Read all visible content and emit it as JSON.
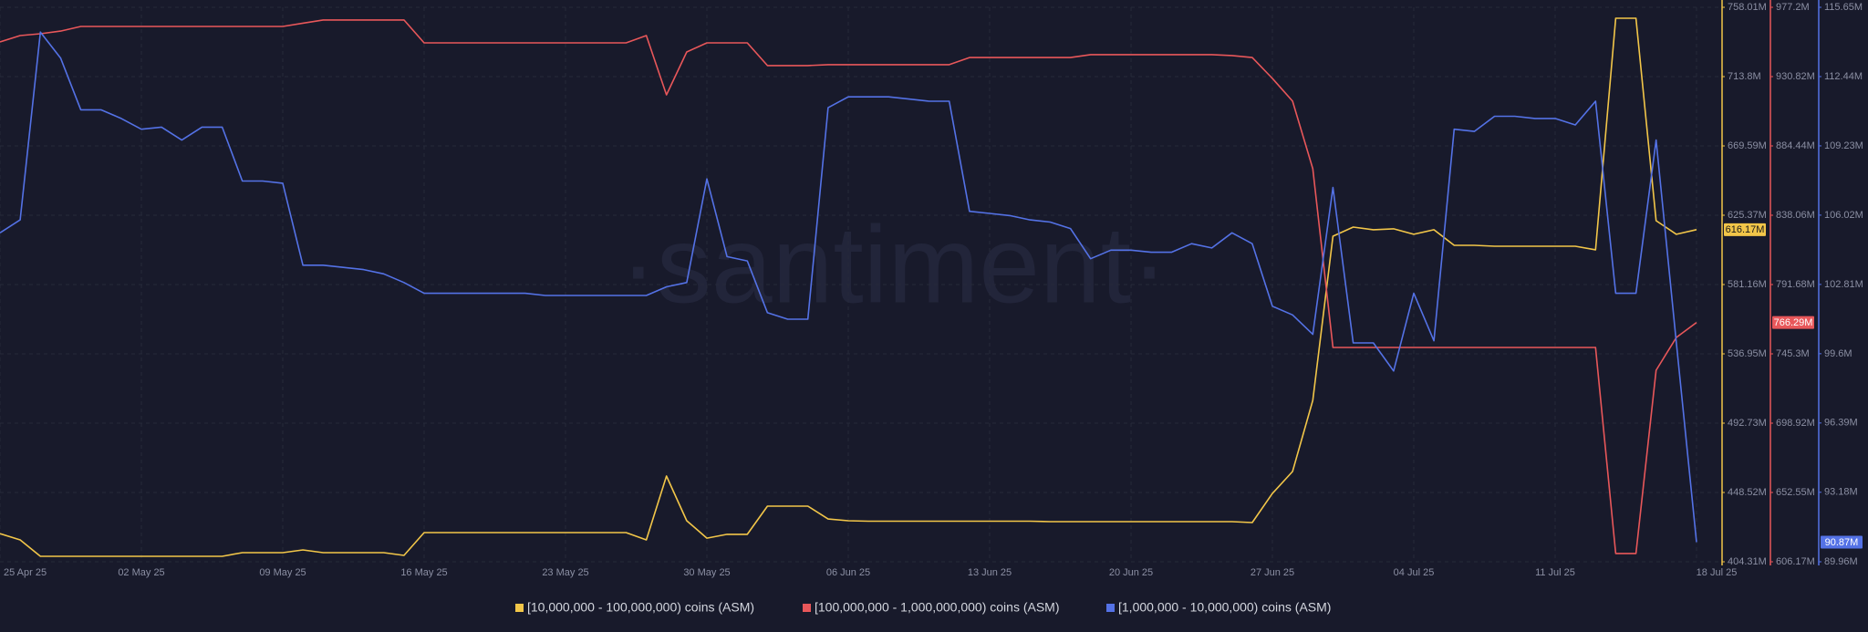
{
  "chart_data": {
    "type": "line",
    "watermark": "·santiment·",
    "categories": [
      "25 Apr 25",
      null,
      null,
      null,
      null,
      null,
      null,
      "02 May 25",
      null,
      null,
      null,
      null,
      null,
      null,
      "09 May 25",
      null,
      null,
      null,
      null,
      null,
      null,
      "16 May 25",
      null,
      null,
      null,
      null,
      null,
      null,
      "23 May 25",
      null,
      null,
      null,
      null,
      null,
      null,
      "30 May 25",
      null,
      null,
      null,
      null,
      null,
      null,
      "06 Jun 25",
      null,
      null,
      null,
      null,
      null,
      null,
      "13 Jun 25",
      null,
      null,
      null,
      null,
      null,
      null,
      "20 Jun 25",
      null,
      null,
      null,
      null,
      null,
      null,
      "27 Jun 25",
      null,
      null,
      null,
      null,
      null,
      null,
      "04 Jul 25",
      null,
      null,
      null,
      null,
      null,
      null,
      "11 Jul 25",
      null,
      null,
      null,
      null,
      null,
      null,
      "18 Jul 25"
    ],
    "series": [
      {
        "name": "[10,000,000 - 100,000,000) coins (ASM)",
        "color": "#f2c649",
        "axis": "y",
        "end_label": "616.17M",
        "values": [
          422.3,
          418.3,
          407.8,
          407.8,
          407.8,
          407.8,
          407.8,
          407.8,
          407.8,
          407.8,
          407.8,
          407.8,
          410.1,
          410.1,
          410.1,
          411.9,
          410.1,
          410.1,
          410.1,
          410.1,
          408.4,
          422.9,
          422.9,
          422.9,
          422.9,
          422.9,
          422.9,
          422.9,
          422.9,
          422.9,
          422.9,
          422.9,
          418.3,
          459.0,
          430.5,
          419.4,
          421.8,
          421.8,
          439.8,
          439.8,
          439.8,
          431.6,
          430.5,
          430.2,
          430.2,
          430.2,
          430.2,
          430.2,
          430.2,
          430.2,
          430.2,
          430.2,
          429.9,
          429.9,
          429.9,
          429.9,
          429.9,
          429.9,
          429.9,
          429.9,
          429.9,
          429.9,
          429.3,
          447.9,
          461.9,
          507.3,
          612.0,
          617.8,
          616.1,
          616.7,
          613.2,
          616.1,
          606.2,
          606.2,
          605.6,
          605.6,
          605.6,
          605.6,
          605.6,
          603.3,
          751.0,
          751.0,
          621.9,
          613.2,
          616.17
        ]
      },
      {
        "name": "[100,000,000 - 1,000,000,000) coins (ASM)",
        "color": "#e8575a",
        "axis": "y2",
        "end_label": "766.29M",
        "values": [
          954.0,
          958.3,
          959.5,
          961.3,
          964.4,
          964.4,
          964.4,
          964.4,
          964.4,
          964.4,
          964.4,
          964.4,
          964.4,
          964.4,
          964.4,
          966.6,
          968.7,
          968.7,
          968.7,
          968.7,
          968.7,
          953.4,
          953.4,
          953.4,
          953.4,
          953.4,
          953.4,
          953.4,
          953.4,
          953.4,
          953.4,
          953.4,
          958.3,
          918.6,
          947.3,
          953.4,
          953.4,
          953.4,
          938.2,
          938.2,
          938.2,
          938.8,
          938.8,
          938.8,
          938.8,
          938.8,
          938.8,
          938.8,
          943.6,
          943.6,
          943.6,
          943.6,
          943.6,
          943.6,
          945.5,
          945.5,
          945.5,
          945.5,
          945.5,
          945.5,
          945.5,
          944.9,
          943.6,
          929.6,
          914.4,
          869.2,
          749.6,
          749.6,
          749.6,
          749.6,
          749.6,
          749.6,
          749.6,
          749.6,
          749.6,
          749.6,
          749.6,
          749.6,
          749.6,
          749.6,
          611.7,
          611.7,
          734.3,
          756.3,
          766.29
        ]
      },
      {
        "name": "[1,000,000 - 10,000,000) coins (ASM)",
        "color": "#5472e6",
        "axis": "y3",
        "end_label": "90.87M",
        "values": [
          105.2,
          105.8,
          114.5,
          113.3,
          110.9,
          110.9,
          110.5,
          110.0,
          110.1,
          109.5,
          110.1,
          110.1,
          107.6,
          107.6,
          107.5,
          103.7,
          103.7,
          103.6,
          103.5,
          103.3,
          102.9,
          102.4,
          102.4,
          102.4,
          102.4,
          102.4,
          102.4,
          102.3,
          102.3,
          102.3,
          102.3,
          102.3,
          102.3,
          102.7,
          102.9,
          107.7,
          104.1,
          103.9,
          101.5,
          101.2,
          101.2,
          111.0,
          111.5,
          111.5,
          111.5,
          111.4,
          111.3,
          111.3,
          106.2,
          106.1,
          106.0,
          105.8,
          105.7,
          105.4,
          104.0,
          104.4,
          104.4,
          104.3,
          104.3,
          104.7,
          104.5,
          105.2,
          104.7,
          101.8,
          101.4,
          100.5,
          107.3,
          100.1,
          100.1,
          98.8,
          102.4,
          100.2,
          110.0,
          109.9,
          110.6,
          110.6,
          110.5,
          110.5,
          110.2,
          111.3,
          102.4,
          102.4,
          109.5,
          100.1,
          90.87
        ]
      }
    ],
    "ylim": [
      404.31,
      758.01
    ],
    "yticks": [
      {
        "value": 404.31,
        "label": "404.31M"
      },
      {
        "value": 448.52,
        "label": "448.52M"
      },
      {
        "value": 492.73,
        "label": "492.73M"
      },
      {
        "value": 536.95,
        "label": "536.95M"
      },
      {
        "value": 581.16,
        "label": "581.16M"
      },
      {
        "value": 625.37,
        "label": "625.37M"
      },
      {
        "value": 669.59,
        "label": "669.59M"
      },
      {
        "value": 713.8,
        "label": "713.8M"
      },
      {
        "value": 758.01,
        "label": "758.01M"
      }
    ],
    "y2lim": [
      606.17,
      977.2
    ],
    "y2ticks": [
      {
        "value": 606.17,
        "label": "606.17M"
      },
      {
        "value": 652.55,
        "label": "652.55M"
      },
      {
        "value": 698.92,
        "label": "698.92M"
      },
      {
        "value": 745.3,
        "label": "745.3M"
      },
      {
        "value": 791.68,
        "label": "791.68M"
      },
      {
        "value": 838.06,
        "label": "838.06M"
      },
      {
        "value": 884.44,
        "label": "884.44M"
      },
      {
        "value": 930.82,
        "label": "930.82M"
      },
      {
        "value": 977.2,
        "label": "977.2M"
      }
    ],
    "y3lim": [
      89.96,
      115.65
    ],
    "y3ticks": [
      {
        "value": 89.96,
        "label": "89.96M"
      },
      {
        "value": 93.18,
        "label": "93.18M"
      },
      {
        "value": 96.39,
        "label": "96.39M"
      },
      {
        "value": 99.6,
        "label": "99.6M"
      },
      {
        "value": 102.81,
        "label": "102.81M"
      },
      {
        "value": 106.02,
        "label": "106.02M"
      },
      {
        "value": 109.23,
        "label": "109.23M"
      },
      {
        "value": 112.44,
        "label": "112.44M"
      },
      {
        "value": 115.65,
        "label": "115.65M"
      }
    ],
    "grid": true,
    "legend": "bottom"
  }
}
